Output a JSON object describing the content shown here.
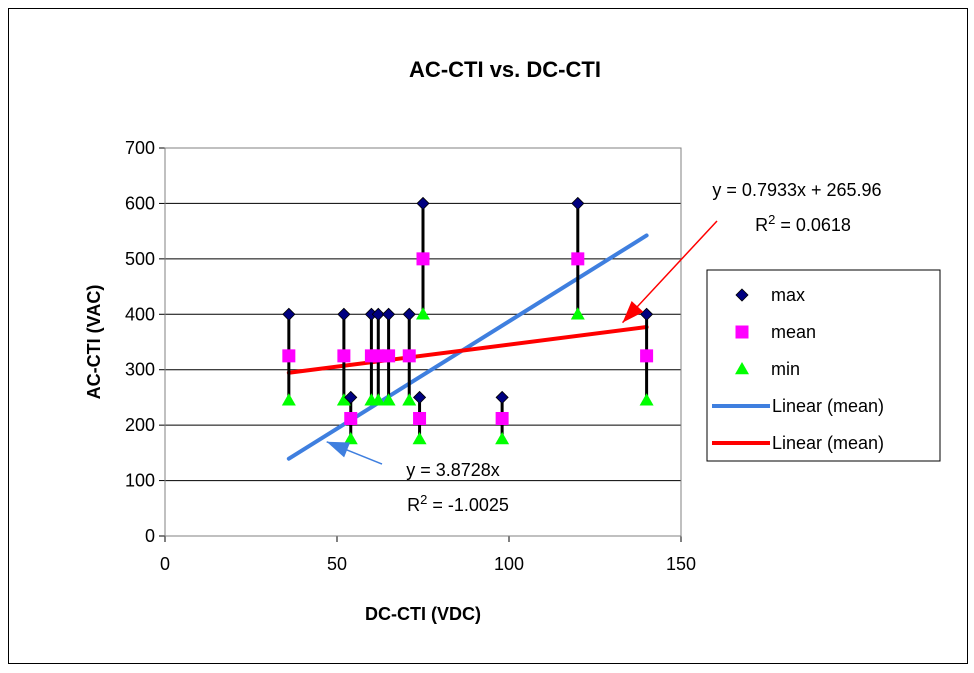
{
  "chart_data": {
    "type": "scatter",
    "title": "AC-CTI vs. DC-CTI",
    "xlabel": "DC-CTI (VDC)",
    "ylabel": "AC-CTI (VAC)",
    "xlim": [
      0,
      150
    ],
    "ylim": [
      0,
      700
    ],
    "xticks": [
      0,
      50,
      100,
      150
    ],
    "yticks": [
      0,
      100,
      200,
      300,
      400,
      500,
      600,
      700
    ],
    "xtick_labels": [
      "0",
      "50",
      "100",
      "150"
    ],
    "ytick_labels": [
      "0",
      "100",
      "200",
      "300",
      "400",
      "500",
      "600",
      "700"
    ],
    "grid": "horizontal",
    "legend_position": "right",
    "points": [
      {
        "x": 36,
        "max": 400,
        "mean": 325,
        "min": 245
      },
      {
        "x": 52,
        "max": 400,
        "mean": 325,
        "min": 245
      },
      {
        "x": 54,
        "max": 250,
        "mean": 212,
        "min": 175
      },
      {
        "x": 60,
        "max": 400,
        "mean": 325,
        "min": 245
      },
      {
        "x": 62,
        "max": 400,
        "mean": 325,
        "min": 245
      },
      {
        "x": 65,
        "max": 400,
        "mean": 325,
        "min": 245
      },
      {
        "x": 71,
        "max": 400,
        "mean": 325,
        "min": 245
      },
      {
        "x": 74,
        "max": 250,
        "mean": 212,
        "min": 175
      },
      {
        "x": 75,
        "max": 600,
        "mean": 500,
        "min": 400
      },
      {
        "x": 98,
        "max": 250,
        "mean": 212,
        "min": 175
      },
      {
        "x": 120,
        "max": 600,
        "mean": 500,
        "min": 400
      },
      {
        "x": 140,
        "max": 400,
        "mean": 325,
        "min": 245
      }
    ],
    "series": [
      {
        "name": "max",
        "marker": "diamond",
        "color": "#000080"
      },
      {
        "name": "mean",
        "marker": "square",
        "color": "#ff00ff"
      },
      {
        "name": "min",
        "marker": "triangle",
        "color": "#00ff00"
      },
      {
        "name": "Linear (mean)",
        "kind": "trendline",
        "color": "#3f7fdf",
        "x": [
          36,
          140
        ],
        "y": [
          139.4,
          542.2
        ]
      },
      {
        "name": "Linear (mean)",
        "kind": "trendline",
        "color": "#ff0000",
        "x": [
          36,
          140
        ],
        "y": [
          294.5,
          377.0
        ]
      }
    ],
    "annotations": [
      {
        "id": "red",
        "line1": "y = 0.7933x + 265.96",
        "r2_prefix": "R",
        "r2_sup": "2",
        "r2_rest": " = 0.0618",
        "color": "#ff0000",
        "arrow_to": {
          "x": 133,
          "y": 385
        }
      },
      {
        "id": "blue",
        "line1": "y = 3.8728x",
        "r2_prefix": "R",
        "r2_sup": "2",
        "r2_rest": " = -1.0025",
        "color": "#3f7fdf",
        "arrow_to": {
          "x": 47,
          "y": 170
        }
      }
    ]
  }
}
